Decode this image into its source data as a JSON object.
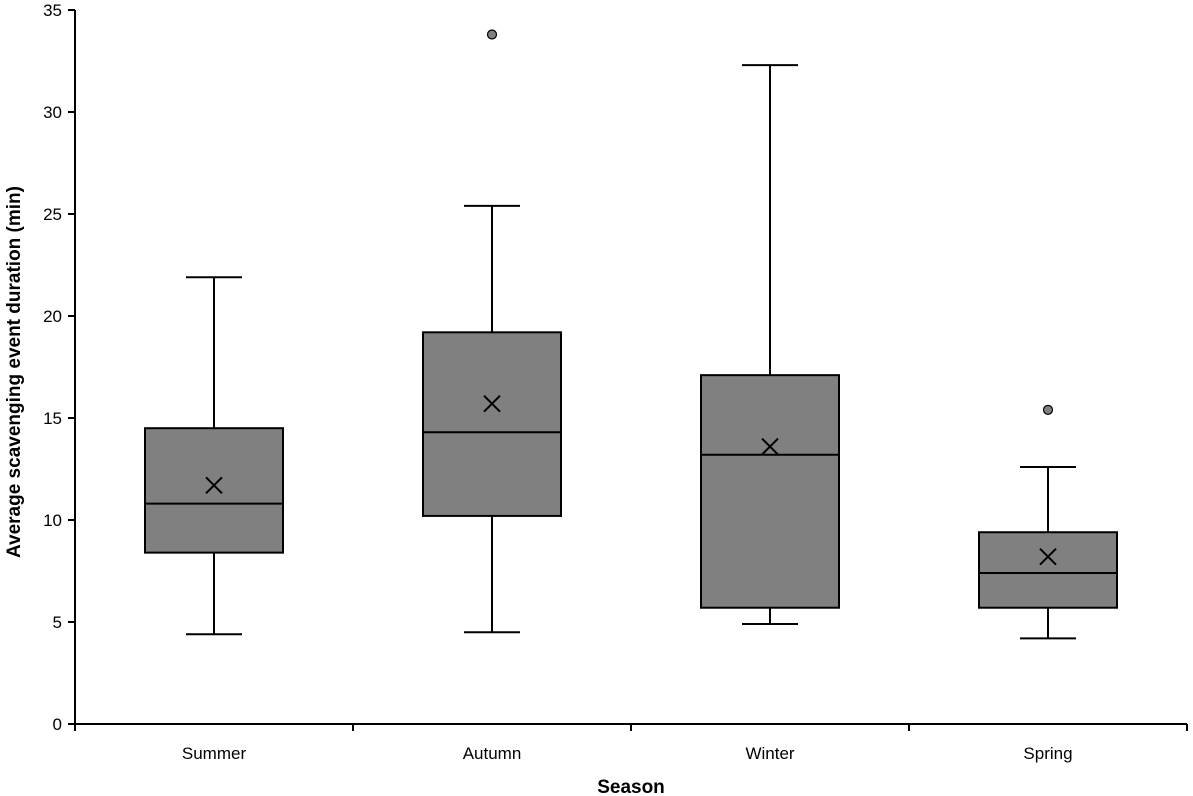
{
  "chart_data": {
    "type": "box",
    "title": "",
    "xlabel": "Season",
    "ylabel": "Average scavenging event duration (min)",
    "ylim": [
      0,
      35
    ],
    "yticks": [
      "0",
      "5",
      "10",
      "15",
      "20",
      "25",
      "30",
      "35"
    ],
    "grid": false,
    "box_color": "#808080",
    "categories": [
      "Summer",
      "Autumn",
      "Winter",
      "Spring"
    ],
    "boxes": [
      {
        "category": "Summer",
        "whisker_low": 4.4,
        "q1": 8.4,
        "median": 10.8,
        "q3": 14.5,
        "whisker_high": 21.9,
        "mean": 11.7,
        "outliers": []
      },
      {
        "category": "Autumn",
        "whisker_low": 4.5,
        "q1": 10.2,
        "median": 14.3,
        "q3": 19.2,
        "whisker_high": 25.4,
        "mean": 15.7,
        "outliers": [
          33.8
        ]
      },
      {
        "category": "Winter",
        "whisker_low": 4.9,
        "q1": 5.7,
        "median": 13.2,
        "q3": 17.1,
        "whisker_high": 32.3,
        "mean": 13.6,
        "outliers": []
      },
      {
        "category": "Spring",
        "whisker_low": 4.2,
        "q1": 5.7,
        "median": 7.4,
        "q3": 9.4,
        "whisker_high": 12.6,
        "mean": 8.2,
        "outliers": [
          15.4
        ]
      }
    ]
  }
}
